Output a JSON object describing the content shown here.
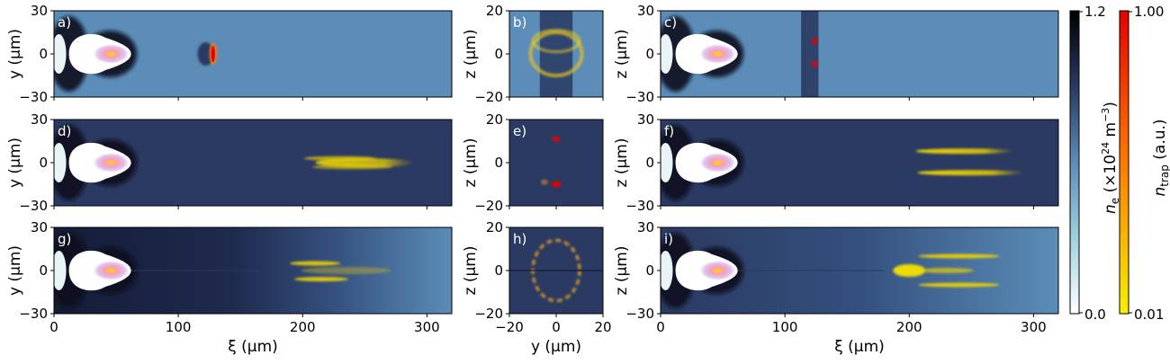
{
  "colors": {
    "bg_light": "#5b8db8",
    "bg_dark": "#2a3a62",
    "bg_darker": "#141c36",
    "trap_low": "#f7f000",
    "trap_mid": "#ff7a00",
    "trap_high": "#e80000"
  },
  "axis_labels": {
    "y": "y (µm)",
    "z": "z (µm)",
    "xi": "ξ (µm)",
    "y_bottom": "y (µm)"
  },
  "colorbars": [
    {
      "label_pre": "n",
      "label_sub": "e",
      "label_post": " (×10",
      "label_sup": "24",
      "label_post2": " m",
      "label_sup2": "−3",
      "label_end": ")",
      "tick_top": "1.2",
      "tick_bottom": "0.0"
    },
    {
      "label_pre": "n",
      "label_sub": "trap",
      "label_post": " (a.u.)",
      "tick_top": "1.00",
      "tick_bottom": "0.01"
    }
  ],
  "chart_data": [
    {
      "panel": "a)",
      "type": "heatmap",
      "xlim": [
        0,
        320
      ],
      "ylim": [
        -30,
        30
      ],
      "xticks": [
        "0",
        "100",
        "200",
        "300"
      ],
      "yticks": [
        "30",
        "0",
        "−30"
      ],
      "ylabel": "y (µm)",
      "xlabel": "",
      "background": "light"
    },
    {
      "panel": "b)",
      "type": "heatmap",
      "xlim": [
        -20,
        20
      ],
      "ylim": [
        -20,
        20
      ],
      "xticks": [
        "−20",
        "0",
        "20"
      ],
      "yticks": [
        "20",
        "0",
        "−20"
      ],
      "ylabel": "z (µm)",
      "xlabel": "",
      "background": "light"
    },
    {
      "panel": "c)",
      "type": "heatmap",
      "xlim": [
        0,
        320
      ],
      "ylim": [
        -30,
        30
      ],
      "xticks": [
        "0",
        "100",
        "200",
        "300"
      ],
      "yticks": [
        "30",
        "0",
        "−30"
      ],
      "ylabel": "z (µm)",
      "xlabel": "",
      "background": "light"
    },
    {
      "panel": "d)",
      "type": "heatmap",
      "xlim": [
        0,
        320
      ],
      "ylim": [
        -30,
        30
      ],
      "xticks": [
        "0",
        "100",
        "200",
        "300"
      ],
      "yticks": [
        "30",
        "0",
        "−30"
      ],
      "ylabel": "y (µm)",
      "xlabel": "",
      "background": "dark"
    },
    {
      "panel": "e)",
      "type": "heatmap",
      "xlim": [
        -20,
        20
      ],
      "ylim": [
        -20,
        20
      ],
      "xticks": [
        "−20",
        "0",
        "20"
      ],
      "yticks": [
        "20",
        "0",
        "−20"
      ],
      "ylabel": "z (µm)",
      "xlabel": "",
      "background": "dark"
    },
    {
      "panel": "f)",
      "type": "heatmap",
      "xlim": [
        0,
        320
      ],
      "ylim": [
        -30,
        30
      ],
      "xticks": [
        "0",
        "100",
        "200",
        "300"
      ],
      "yticks": [
        "30",
        "0",
        "−30"
      ],
      "ylabel": "z (µm)",
      "xlabel": "",
      "background": "dark"
    },
    {
      "panel": "g)",
      "type": "heatmap",
      "xlim": [
        0,
        320
      ],
      "ylim": [
        -30,
        30
      ],
      "xticks": [
        "0",
        "100",
        "200",
        "300"
      ],
      "yticks": [
        "30",
        "0",
        "−30"
      ],
      "ylabel": "y (µm)",
      "xlabel": "ξ (µm)",
      "background": "gradient"
    },
    {
      "panel": "h)",
      "type": "heatmap",
      "xlim": [
        -20,
        20
      ],
      "ylim": [
        -20,
        20
      ],
      "xticks": [
        "−20",
        "0",
        "20"
      ],
      "yticks": [
        "20",
        "0",
        "−20"
      ],
      "ylabel": "z (µm)",
      "xlabel": "y (µm)",
      "background": "dark"
    },
    {
      "panel": "i)",
      "type": "heatmap",
      "xlim": [
        0,
        320
      ],
      "ylim": [
        -30,
        30
      ],
      "xticks": [
        "0",
        "100",
        "200",
        "300"
      ],
      "yticks": [
        "30",
        "0",
        "−30"
      ],
      "ylabel": "z (µm)",
      "xlabel": "ξ (µm)",
      "background": "gradient"
    }
  ]
}
